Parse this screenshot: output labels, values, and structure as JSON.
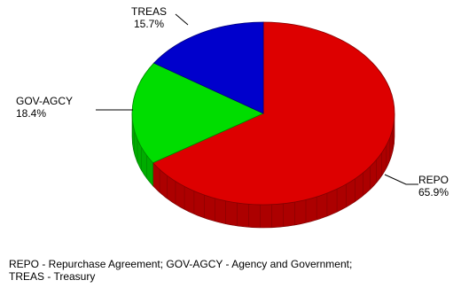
{
  "chart_data": {
    "type": "pie",
    "style": "3d",
    "slices": [
      {
        "label": "REPO",
        "value": 65.9,
        "value_label": "65.9%",
        "color": "#dd0000"
      },
      {
        "label": "GOV-AGCY",
        "value": 18.4,
        "value_label": "18.4%",
        "color": "#00dd00"
      },
      {
        "label": "TREAS",
        "value": 15.7,
        "value_label": "15.7%",
        "color": "#0000cc"
      }
    ]
  },
  "footnote": {
    "line1": "REPO - Repurchase Agreement; GOV-AGCY - Agency and Government;",
    "line2": "TREAS - Treasury"
  }
}
